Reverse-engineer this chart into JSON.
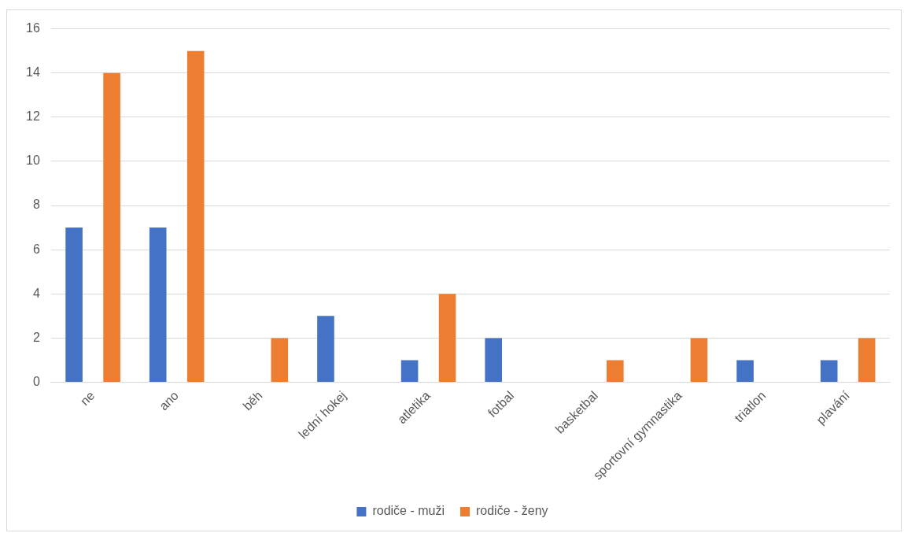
{
  "chart_data": {
    "type": "bar",
    "categories": [
      "ne",
      "ano",
      "běh",
      "lední hokej",
      "atletika",
      "fotbal",
      "basketbal",
      "sportovní gymnastika",
      "triatlon",
      "plavání"
    ],
    "series": [
      {
        "name": "rodiče - muži",
        "color": "#4472c4",
        "values": [
          7,
          7,
          0,
          3,
          1,
          2,
          0,
          0,
          1,
          1
        ]
      },
      {
        "name": "rodiče - ženy",
        "color": "#ed7d31",
        "values": [
          14,
          15,
          2,
          0,
          4,
          0,
          1,
          2,
          0,
          2
        ]
      }
    ],
    "ylim": [
      0,
      16
    ],
    "yticks": [
      0,
      2,
      4,
      6,
      8,
      10,
      12,
      14,
      16
    ],
    "grid": "y",
    "legend": "bottom"
  }
}
